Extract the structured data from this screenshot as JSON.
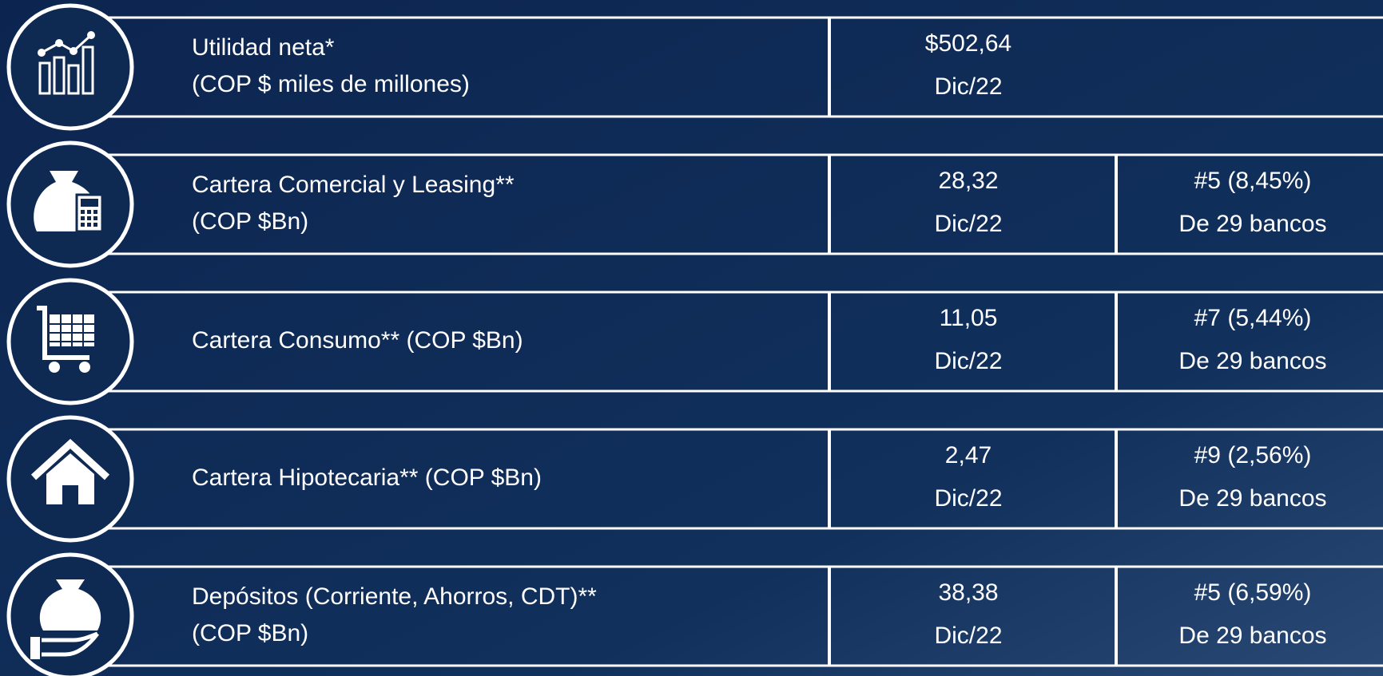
{
  "rows": [
    {
      "label": [
        "Utilidad neta*",
        "(COP $ miles de millones)"
      ],
      "value": "$502,64",
      "date": "Dic/22"
    },
    {
      "label": [
        "Cartera Comercial  y Leasing**",
        "(COP $Bn)"
      ],
      "value": "28,32",
      "date": "Dic/22",
      "rank": "#5 (8,45%)",
      "rank_note": "De 29 bancos"
    },
    {
      "label": [
        "Cartera Consumo** (COP $Bn)"
      ],
      "value": "11,05",
      "date": "Dic/22",
      "rank": "#7 (5,44%)",
      "rank_note": "De 29 bancos"
    },
    {
      "label": [
        "Cartera Hipotecaria** (COP $Bn)"
      ],
      "value": "2,47",
      "date": "Dic/22",
      "rank": "#9 (2,56%)",
      "rank_note": "De 29 bancos"
    },
    {
      "label": [
        "Depósitos (Corriente, Ahorros, CDT)**",
        "(COP $Bn)"
      ],
      "value": "38,38",
      "date": "Dic/22",
      "rank": "#5 (6,59%)",
      "rank_note": "De 29 bancos"
    }
  ]
}
